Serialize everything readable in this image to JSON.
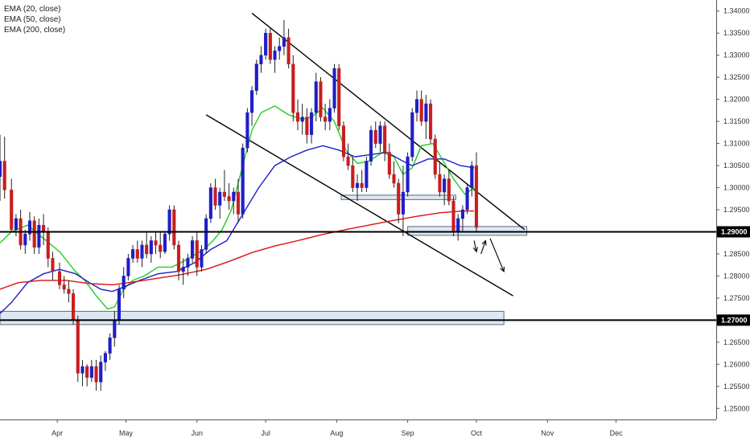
{
  "legend": {
    "ema20": "EMA (20, close)",
    "ema50": "EMA (50, close)",
    "ema200": "EMA (200, close)"
  },
  "colors": {
    "up": "#1e1ec8",
    "down": "#c81e1e",
    "ema20": "#22cc22",
    "ema50": "#1e1ec8",
    "ema200": "#dd1111",
    "zone": "#dde8f2"
  },
  "chart_data": {
    "type": "candlestick",
    "x_ticks": [
      "Apr",
      "May",
      "Jun",
      "Jul",
      "Aug",
      "Sep",
      "Oct",
      "Nov",
      "Dec"
    ],
    "y_ticks": [
      "1.34000",
      "1.33500",
      "1.33000",
      "1.32500",
      "1.32000",
      "1.31500",
      "1.31000",
      "1.30500",
      "1.30000",
      "1.29500",
      "1.29000",
      "1.28500",
      "1.28000",
      "1.27500",
      "1.27000",
      "1.26500",
      "1.26000",
      "1.25500",
      "1.25000"
    ],
    "ylim": [
      1.2475,
      1.3425
    ],
    "price_tags": [
      "1.29000",
      "1.27000"
    ],
    "horizontal_lines": [
      1.29,
      1.27
    ],
    "zones": [
      {
        "from": "2018-03-07",
        "to": "2018-10-13",
        "low": 1.269,
        "high": 1.272
      },
      {
        "from": "2018-08-03",
        "to": "2018-09-22",
        "low": 1.2973,
        "high": 1.2983
      },
      {
        "from": "2018-09-01",
        "to": "2018-10-23",
        "low": 1.2892,
        "high": 1.2912
      }
    ],
    "trend_lines": [
      {
        "from": [
          "2018-06-25",
          1.3395
        ],
        "to": [
          "2018-10-22",
          1.2905
        ]
      },
      {
        "from": [
          "2018-06-05",
          1.3165
        ],
        "to": [
          "2018-10-17",
          1.2755
        ]
      }
    ],
    "arrows": [
      {
        "from": [
          "2018-09-30",
          1.288
        ],
        "to": [
          "2018-10-01",
          1.2855
        ]
      },
      {
        "from": [
          "2018-10-03",
          1.285
        ],
        "to": [
          "2018-10-05",
          1.288
        ]
      },
      {
        "from": [
          "2018-10-07",
          1.2885
        ],
        "to": [
          "2018-10-13",
          1.281
        ]
      }
    ],
    "series": [
      {
        "name": "EMA (20, close)",
        "points": [
          [
            "2018-03-07",
            1.2875
          ],
          [
            "2018-03-12",
            1.29
          ],
          [
            "2018-03-19",
            1.2915
          ],
          [
            "2018-03-26",
            1.2885
          ],
          [
            "2018-04-02",
            1.2855
          ],
          [
            "2018-04-09",
            1.281
          ],
          [
            "2018-04-13",
            1.279
          ],
          [
            "2018-04-18",
            1.2755
          ],
          [
            "2018-04-23",
            1.2725
          ],
          [
            "2018-04-26",
            1.273
          ],
          [
            "2018-04-30",
            1.277
          ],
          [
            "2018-05-04",
            1.279
          ],
          [
            "2018-05-09",
            1.28
          ],
          [
            "2018-05-15",
            1.282
          ],
          [
            "2018-05-21",
            1.282
          ],
          [
            "2018-05-25",
            1.283
          ],
          [
            "2018-05-30",
            1.2845
          ],
          [
            "2018-06-04",
            1.286
          ],
          [
            "2018-06-08",
            1.288
          ],
          [
            "2018-06-12",
            1.2905
          ],
          [
            "2018-06-16",
            1.295
          ],
          [
            "2018-06-20",
            1.303
          ],
          [
            "2018-06-25",
            1.313
          ],
          [
            "2018-06-29",
            1.317
          ],
          [
            "2018-07-05",
            1.3185
          ],
          [
            "2018-07-11",
            1.3165
          ],
          [
            "2018-07-17",
            1.3155
          ],
          [
            "2018-07-21",
            1.316
          ],
          [
            "2018-07-26",
            1.318
          ],
          [
            "2018-07-31",
            1.315
          ],
          [
            "2018-08-05",
            1.3085
          ],
          [
            "2018-08-10",
            1.3055
          ],
          [
            "2018-08-15",
            1.306
          ],
          [
            "2018-08-21",
            1.308
          ],
          [
            "2018-08-26",
            1.307
          ],
          [
            "2018-08-30",
            1.303
          ],
          [
            "2018-09-03",
            1.3045
          ],
          [
            "2018-09-07",
            1.3095
          ],
          [
            "2018-09-12",
            1.31
          ],
          [
            "2018-09-16",
            1.3065
          ],
          [
            "2018-09-21",
            1.302
          ],
          [
            "2018-09-26",
            1.2985
          ],
          [
            "2018-09-30",
            1.3
          ]
        ]
      },
      {
        "name": "EMA (50, close)",
        "points": [
          [
            "2018-03-07",
            1.2715
          ],
          [
            "2018-03-12",
            1.274
          ],
          [
            "2018-03-19",
            1.2785
          ],
          [
            "2018-03-26",
            1.2805
          ],
          [
            "2018-04-02",
            1.2815
          ],
          [
            "2018-04-09",
            1.2805
          ],
          [
            "2018-04-15",
            1.2785
          ],
          [
            "2018-04-20",
            1.277
          ],
          [
            "2018-04-25",
            1.2765
          ],
          [
            "2018-04-30",
            1.2775
          ],
          [
            "2018-05-07",
            1.279
          ],
          [
            "2018-05-15",
            1.2805
          ],
          [
            "2018-05-23",
            1.281
          ],
          [
            "2018-05-31",
            1.283
          ],
          [
            "2018-06-07",
            1.286
          ],
          [
            "2018-06-14",
            1.288
          ],
          [
            "2018-06-21",
            1.294
          ],
          [
            "2018-06-28",
            1.3
          ],
          [
            "2018-07-05",
            1.305
          ],
          [
            "2018-07-12",
            1.307
          ],
          [
            "2018-07-19",
            1.3085
          ],
          [
            "2018-07-26",
            1.3095
          ],
          [
            "2018-08-02",
            1.3085
          ],
          [
            "2018-08-09",
            1.307
          ],
          [
            "2018-08-16",
            1.3075
          ],
          [
            "2018-08-23",
            1.308
          ],
          [
            "2018-08-30",
            1.306
          ],
          [
            "2018-09-03",
            1.305
          ],
          [
            "2018-09-10",
            1.3065
          ],
          [
            "2018-09-17",
            1.3065
          ],
          [
            "2018-09-24",
            1.305
          ],
          [
            "2018-09-30",
            1.3045
          ]
        ]
      },
      {
        "name": "EMA (200, close)",
        "points": [
          [
            "2018-03-07",
            1.277
          ],
          [
            "2018-03-15",
            1.2785
          ],
          [
            "2018-03-25",
            1.279
          ],
          [
            "2018-04-05",
            1.279
          ],
          [
            "2018-04-15",
            1.2783
          ],
          [
            "2018-04-25",
            1.278
          ],
          [
            "2018-05-05",
            1.2787
          ],
          [
            "2018-05-15",
            1.2795
          ],
          [
            "2018-05-25",
            1.2803
          ],
          [
            "2018-06-05",
            1.2815
          ],
          [
            "2018-06-15",
            1.2833
          ],
          [
            "2018-06-25",
            1.2853
          ],
          [
            "2018-07-05",
            1.2868
          ],
          [
            "2018-07-15",
            1.288
          ],
          [
            "2018-07-25",
            1.2893
          ],
          [
            "2018-08-05",
            1.2905
          ],
          [
            "2018-08-15",
            1.2915
          ],
          [
            "2018-08-25",
            1.2925
          ],
          [
            "2018-09-05",
            1.2935
          ],
          [
            "2018-09-15",
            1.2943
          ],
          [
            "2018-09-25",
            1.2947
          ],
          [
            "2018-09-30",
            1.2947
          ]
        ]
      }
    ],
    "candles": [
      [
        "2018-03-07",
        1.3025,
        1.312,
        1.297,
        1.306
      ],
      [
        "2018-03-09",
        1.306,
        1.3115,
        1.2975,
        1.2995
      ],
      [
        "2018-03-12",
        1.2995,
        1.302,
        1.29,
        1.2905
      ],
      [
        "2018-03-14",
        1.2905,
        1.294,
        1.289,
        1.293
      ],
      [
        "2018-03-16",
        1.293,
        1.295,
        1.286,
        1.287
      ],
      [
        "2018-03-18",
        1.287,
        1.2905,
        1.285,
        1.2895
      ],
      [
        "2018-03-20",
        1.2895,
        1.2945,
        1.288,
        1.2925
      ],
      [
        "2018-03-22",
        1.2925,
        1.2935,
        1.285,
        1.2865
      ],
      [
        "2018-03-24",
        1.2865,
        1.293,
        1.285,
        1.2915
      ],
      [
        "2018-03-26",
        1.2915,
        1.294,
        1.287,
        1.29
      ],
      [
        "2018-03-28",
        1.29,
        1.291,
        1.282,
        1.284
      ],
      [
        "2018-03-30",
        1.284,
        1.2855,
        1.279,
        1.281
      ],
      [
        "2018-04-02",
        1.281,
        1.283,
        1.277,
        1.278
      ],
      [
        "2018-04-04",
        1.278,
        1.28,
        1.276,
        1.277
      ],
      [
        "2018-04-06",
        1.277,
        1.279,
        1.274,
        1.276
      ],
      [
        "2018-04-08",
        1.276,
        1.277,
        1.269,
        1.27
      ],
      [
        "2018-04-10",
        1.27,
        1.271,
        1.256,
        1.258
      ],
      [
        "2018-04-12",
        1.258,
        1.261,
        1.255,
        1.2595
      ],
      [
        "2018-04-14",
        1.2595,
        1.26,
        1.255,
        1.257
      ],
      [
        "2018-04-16",
        1.257,
        1.261,
        1.256,
        1.2595
      ],
      [
        "2018-04-18",
        1.2595,
        1.261,
        1.254,
        1.256
      ],
      [
        "2018-04-20",
        1.256,
        1.262,
        1.254,
        1.2605
      ],
      [
        "2018-04-22",
        1.2605,
        1.263,
        1.2585,
        1.2625
      ],
      [
        "2018-04-24",
        1.2625,
        1.267,
        1.261,
        1.266
      ],
      [
        "2018-04-26",
        1.266,
        1.272,
        1.264,
        1.27
      ],
      [
        "2018-04-28",
        1.27,
        1.278,
        1.269,
        1.277
      ],
      [
        "2018-04-30",
        1.277,
        1.282,
        1.275,
        1.28
      ],
      [
        "2018-05-02",
        1.28,
        1.285,
        1.279,
        1.284
      ],
      [
        "2018-05-04",
        1.284,
        1.287,
        1.283,
        1.286
      ],
      [
        "2018-05-06",
        1.286,
        1.288,
        1.283,
        1.284
      ],
      [
        "2018-05-08",
        1.284,
        1.288,
        1.282,
        1.287
      ],
      [
        "2018-05-10",
        1.287,
        1.29,
        1.284,
        1.285
      ],
      [
        "2018-05-12",
        1.285,
        1.289,
        1.283,
        1.288
      ],
      [
        "2018-05-14",
        1.288,
        1.29,
        1.285,
        1.287
      ],
      [
        "2018-05-16",
        1.287,
        1.29,
        1.284,
        1.2855
      ],
      [
        "2018-05-18",
        1.2855,
        1.29,
        1.285,
        1.2895
      ],
      [
        "2018-05-20",
        1.2895,
        1.296,
        1.288,
        1.295
      ],
      [
        "2018-05-22",
        1.295,
        1.296,
        1.286,
        1.287
      ],
      [
        "2018-05-24",
        1.287,
        1.288,
        1.279,
        1.281
      ],
      [
        "2018-05-26",
        1.281,
        1.284,
        1.278,
        1.282
      ],
      [
        "2018-05-28",
        1.282,
        1.285,
        1.28,
        1.284
      ],
      [
        "2018-05-30",
        1.284,
        1.289,
        1.283,
        1.288
      ],
      [
        "2018-06-01",
        1.288,
        1.29,
        1.28,
        1.282
      ],
      [
        "2018-06-03",
        1.282,
        1.287,
        1.281,
        1.286
      ],
      [
        "2018-06-05",
        1.286,
        1.294,
        1.285,
        1.293
      ],
      [
        "2018-06-07",
        1.293,
        1.301,
        1.292,
        1.3
      ],
      [
        "2018-06-09",
        1.3,
        1.302,
        1.295,
        1.296
      ],
      [
        "2018-06-11",
        1.296,
        1.3,
        1.293,
        1.299
      ],
      [
        "2018-06-13",
        1.299,
        1.304,
        1.297,
        1.298
      ],
      [
        "2018-06-15",
        1.298,
        1.301,
        1.295,
        1.297
      ],
      [
        "2018-06-17",
        1.297,
        1.3,
        1.294,
        1.299
      ],
      [
        "2018-06-19",
        1.299,
        1.302,
        1.292,
        1.294
      ],
      [
        "2018-06-21",
        1.294,
        1.31,
        1.293,
        1.309
      ],
      [
        "2018-06-23",
        1.309,
        1.318,
        1.308,
        1.317
      ],
      [
        "2018-06-25",
        1.317,
        1.323,
        1.314,
        1.322
      ],
      [
        "2018-06-27",
        1.322,
        1.329,
        1.321,
        1.328
      ],
      [
        "2018-06-29",
        1.328,
        1.332,
        1.326,
        1.33
      ],
      [
        "2018-07-01",
        1.33,
        1.336,
        1.329,
        1.335
      ],
      [
        "2018-07-03",
        1.335,
        1.336,
        1.328,
        1.329
      ],
      [
        "2018-07-05",
        1.329,
        1.332,
        1.326,
        1.331
      ],
      [
        "2018-07-07",
        1.331,
        1.334,
        1.329,
        1.332
      ],
      [
        "2018-07-09",
        1.332,
        1.338,
        1.33,
        1.334
      ],
      [
        "2018-07-11",
        1.334,
        1.336,
        1.327,
        1.328
      ],
      [
        "2018-07-13",
        1.328,
        1.33,
        1.315,
        1.317
      ],
      [
        "2018-07-15",
        1.317,
        1.32,
        1.313,
        1.315
      ],
      [
        "2018-07-17",
        1.315,
        1.319,
        1.312,
        1.316
      ],
      [
        "2018-07-19",
        1.316,
        1.318,
        1.31,
        1.312
      ],
      [
        "2018-07-21",
        1.312,
        1.318,
        1.31,
        1.317
      ],
      [
        "2018-07-23",
        1.317,
        1.326,
        1.315,
        1.324
      ],
      [
        "2018-07-25",
        1.324,
        1.325,
        1.315,
        1.316
      ],
      [
        "2018-07-27",
        1.316,
        1.319,
        1.313,
        1.315
      ],
      [
        "2018-07-29",
        1.315,
        1.32,
        1.313,
        1.318
      ],
      [
        "2018-07-31",
        1.318,
        1.328,
        1.317,
        1.327
      ],
      [
        "2018-08-02",
        1.327,
        1.328,
        1.313,
        1.314
      ],
      [
        "2018-08-04",
        1.314,
        1.315,
        1.306,
        1.307
      ],
      [
        "2018-08-06",
        1.307,
        1.31,
        1.304,
        1.305
      ],
      [
        "2018-08-08",
        1.305,
        1.307,
        1.299,
        1.3
      ],
      [
        "2018-08-10",
        1.3,
        1.303,
        1.297,
        1.301
      ],
      [
        "2018-08-12",
        1.301,
        1.304,
        1.299,
        1.3
      ],
      [
        "2018-08-14",
        1.3,
        1.307,
        1.299,
        1.306
      ],
      [
        "2018-08-16",
        1.306,
        1.314,
        1.305,
        1.313
      ],
      [
        "2018-08-18",
        1.313,
        1.315,
        1.309,
        1.31
      ],
      [
        "2018-08-20",
        1.31,
        1.315,
        1.308,
        1.314
      ],
      [
        "2018-08-22",
        1.314,
        1.315,
        1.306,
        1.308
      ],
      [
        "2018-08-24",
        1.308,
        1.31,
        1.302,
        1.303
      ],
      [
        "2018-08-26",
        1.303,
        1.306,
        1.3,
        1.301
      ],
      [
        "2018-08-28",
        1.301,
        1.302,
        1.292,
        1.294
      ],
      [
        "2018-08-30",
        1.294,
        1.305,
        1.289,
        1.299
      ],
      [
        "2018-09-01",
        1.299,
        1.308,
        1.298,
        1.307
      ],
      [
        "2018-09-03",
        1.307,
        1.318,
        1.306,
        1.317
      ],
      [
        "2018-09-05",
        1.317,
        1.322,
        1.315,
        1.32
      ],
      [
        "2018-09-07",
        1.32,
        1.322,
        1.314,
        1.315
      ],
      [
        "2018-09-09",
        1.315,
        1.321,
        1.311,
        1.319
      ],
      [
        "2018-09-11",
        1.319,
        1.32,
        1.31,
        1.311
      ],
      [
        "2018-09-13",
        1.311,
        1.312,
        1.302,
        1.303
      ],
      [
        "2018-09-15",
        1.303,
        1.306,
        1.298,
        1.299
      ],
      [
        "2018-09-17",
        1.299,
        1.303,
        1.296,
        1.302
      ],
      [
        "2018-09-19",
        1.302,
        1.304,
        1.296,
        1.297
      ],
      [
        "2018-09-21",
        1.297,
        1.298,
        1.289,
        1.29
      ],
      [
        "2018-09-23",
        1.29,
        1.294,
        1.288,
        1.293
      ],
      [
        "2018-09-25",
        1.293,
        1.296,
        1.29,
        1.295
      ],
      [
        "2018-09-27",
        1.295,
        1.301,
        1.294,
        1.3
      ],
      [
        "2018-09-29",
        1.3,
        1.306,
        1.298,
        1.305
      ],
      [
        "2018-10-01",
        1.305,
        1.308,
        1.29,
        1.291
      ]
    ]
  }
}
